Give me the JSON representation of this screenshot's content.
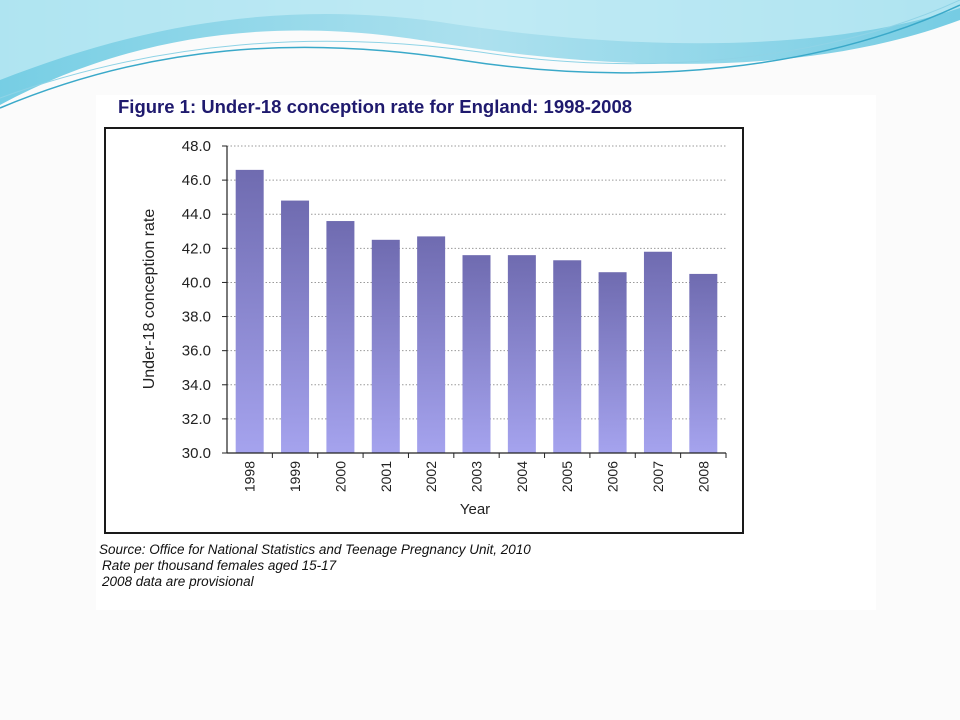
{
  "figure": {
    "title": "Figure 1: Under-18 conception rate for England: 1998-2008",
    "source": "Source: Office for National Statistics and Teenage Pregnancy Unit, 2010",
    "note_1": "Rate per thousand females aged 15-17",
    "note_2": "2008 data are provisional"
  },
  "colors": {
    "bar_top": "#6f6bb0",
    "bar_bottom": "#a5a3ee",
    "title": "#1f1a6e",
    "swoosh_light": "#bfeaf4",
    "swoosh_dark": "#58c3df"
  },
  "chart_data": {
    "type": "bar",
    "title": "Figure 1: Under-18 conception rate for England: 1998-2008",
    "xlabel": "Year",
    "ylabel": "Under-18 conception rate",
    "categories": [
      "1998",
      "1999",
      "2000",
      "2001",
      "2002",
      "2003",
      "2004",
      "2005",
      "2006",
      "2007",
      "2008"
    ],
    "values": [
      46.6,
      44.8,
      43.6,
      42.5,
      42.7,
      41.6,
      41.6,
      41.3,
      40.6,
      41.8,
      40.5
    ],
    "ylim": [
      30,
      48
    ],
    "yticks": [
      "30.0",
      "32.0",
      "34.0",
      "36.0",
      "38.0",
      "40.0",
      "42.0",
      "44.0",
      "46.0",
      "48.0"
    ],
    "grid": true,
    "legend": "none"
  }
}
